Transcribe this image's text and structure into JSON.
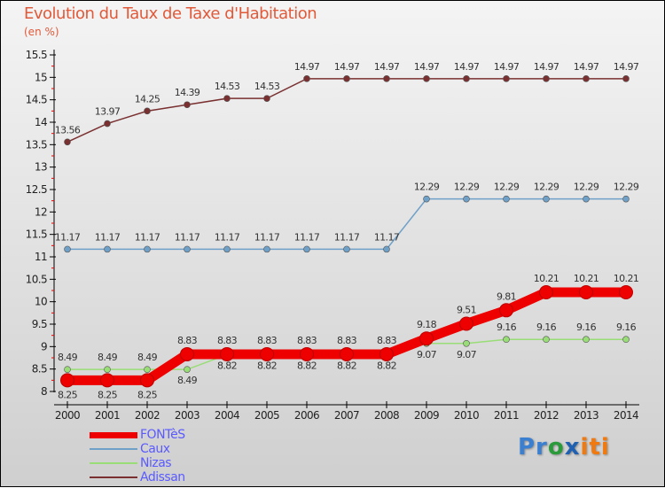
{
  "chart_data": {
    "type": "line",
    "title": "Evolution du Taux de Taxe d'Habitation",
    "ylabel": "(en %)",
    "xlabel": "",
    "ylim": [
      8,
      15.5
    ],
    "yticks": [
      "8",
      "8.5",
      "9",
      "9.5",
      "10",
      "10.5",
      "11",
      "11.5",
      "12",
      "12.5",
      "13",
      "13.5",
      "14",
      "14.5",
      "15",
      "15.5"
    ],
    "categories": [
      "2000",
      "2001",
      "2002",
      "2003",
      "2004",
      "2005",
      "2006",
      "2007",
      "2008",
      "2009",
      "2010",
      "2011",
      "2012",
      "2013",
      "2014"
    ],
    "series": [
      {
        "name": "FONTèS",
        "color": "#ee0000",
        "values": [
          8.25,
          8.25,
          8.25,
          8.83,
          8.83,
          8.83,
          8.83,
          8.83,
          8.83,
          9.18,
          9.51,
          9.81,
          10.21,
          10.21,
          10.21
        ]
      },
      {
        "name": "Caux",
        "color": "#6fa0c8",
        "values": [
          11.17,
          11.17,
          11.17,
          11.17,
          11.17,
          11.17,
          11.17,
          11.17,
          11.17,
          12.29,
          12.29,
          12.29,
          12.29,
          12.29,
          12.29
        ]
      },
      {
        "name": "Nizas",
        "color": "#99dd77",
        "values": [
          8.49,
          8.49,
          8.49,
          8.49,
          8.82,
          8.82,
          8.82,
          8.82,
          8.82,
          9.07,
          9.07,
          9.16,
          9.16,
          9.16,
          9.16
        ]
      },
      {
        "name": "Adissan",
        "color": "#7a3030",
        "values": [
          13.56,
          13.97,
          14.25,
          14.39,
          14.53,
          14.53,
          14.97,
          14.97,
          14.97,
          14.97,
          14.97,
          14.97,
          14.97,
          14.97,
          14.97
        ]
      }
    ],
    "legend": "bottom-left"
  },
  "logo": "Proxiti"
}
